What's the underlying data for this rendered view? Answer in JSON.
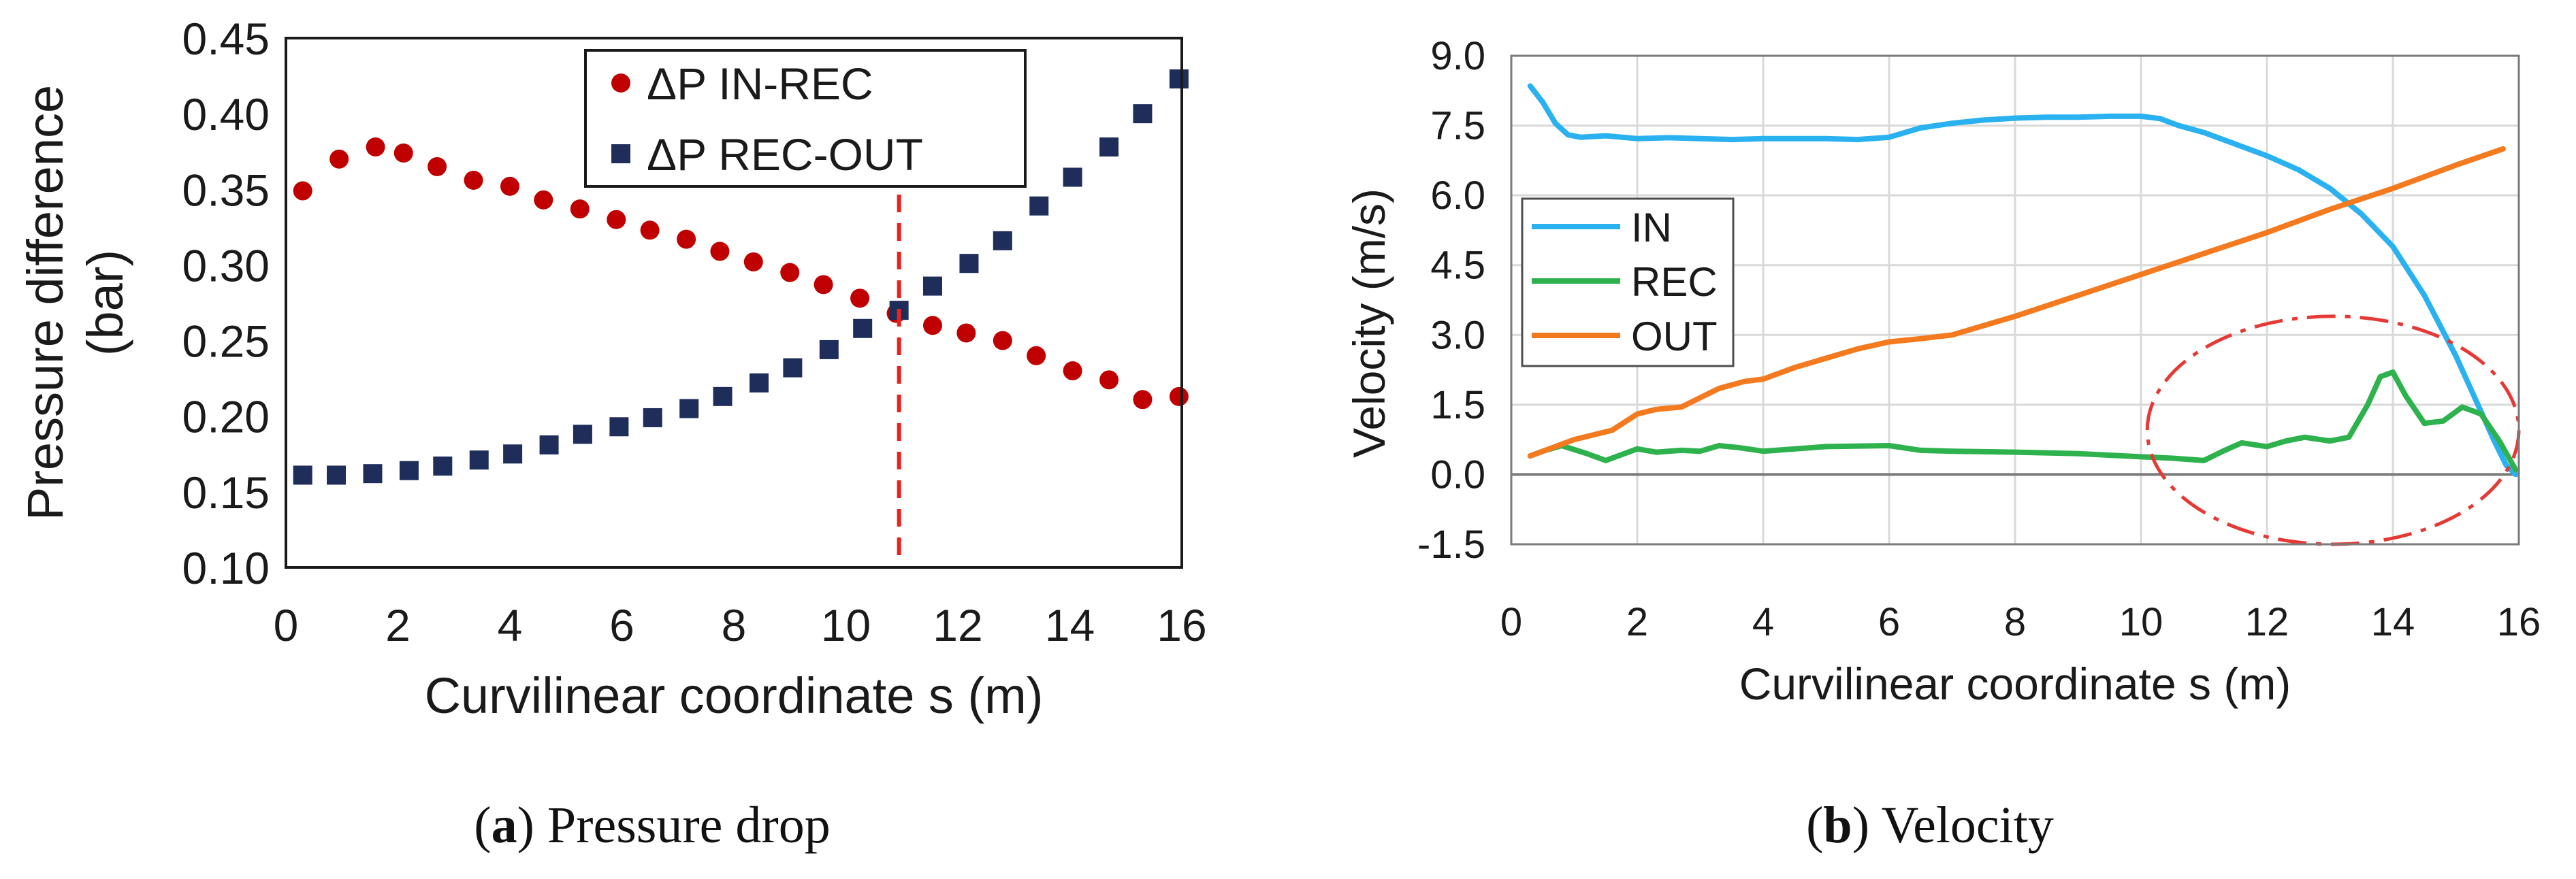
{
  "chart_data": [
    {
      "type": "scatter",
      "xlabel": "Curvilinear coordinate s (m)",
      "ylabel_line1": "Pressure difference",
      "ylabel_line2": "(bar)",
      "xlim": [
        0,
        16
      ],
      "ylim": [
        0.1,
        0.45
      ],
      "xticks": [
        "0",
        "2",
        "4",
        "6",
        "8",
        "10",
        "12",
        "14",
        "16"
      ],
      "yticks": [
        "0.10",
        "0.15",
        "0.20",
        "0.25",
        "0.30",
        "0.35",
        "0.40",
        "0.45"
      ],
      "grid": false,
      "legend_position": "top-right",
      "vline_x": 10.95,
      "colors": {
        "in_rec": "#c00000",
        "rec_out": "#1f2d5a",
        "vline": "#e8231e"
      },
      "series": [
        {
          "name": "ΔP IN-REC",
          "marker": "circle",
          "x": [
            0.3,
            0.95,
            1.6,
            2.1,
            2.7,
            3.35,
            4.0,
            4.6,
            5.25,
            5.9,
            6.5,
            7.15,
            7.75,
            8.35,
            9.0,
            9.6,
            10.25,
            10.9,
            11.55,
            12.15,
            12.8,
            13.4,
            14.05,
            14.7,
            15.3,
            15.95
          ],
          "y": [
            0.349,
            0.37,
            0.378,
            0.374,
            0.365,
            0.356,
            0.352,
            0.343,
            0.337,
            0.33,
            0.323,
            0.317,
            0.309,
            0.302,
            0.295,
            0.287,
            0.278,
            0.268,
            0.26,
            0.255,
            0.25,
            0.24,
            0.23,
            0.224,
            0.211,
            0.213
          ]
        },
        {
          "name": "ΔP REC-OUT",
          "marker": "square",
          "x": [
            0.3,
            0.9,
            1.55,
            2.2,
            2.8,
            3.45,
            4.05,
            4.7,
            5.3,
            5.95,
            6.55,
            7.2,
            7.8,
            8.45,
            9.05,
            9.7,
            10.3,
            10.95,
            11.55,
            12.2,
            12.8,
            13.45,
            14.05,
            14.7,
            15.3,
            15.95
          ],
          "y": [
            0.161,
            0.161,
            0.162,
            0.164,
            0.167,
            0.171,
            0.175,
            0.181,
            0.188,
            0.193,
            0.199,
            0.205,
            0.213,
            0.222,
            0.232,
            0.244,
            0.258,
            0.27,
            0.286,
            0.301,
            0.316,
            0.339,
            0.358,
            0.378,
            0.4,
            0.423
          ]
        }
      ]
    },
    {
      "type": "line",
      "xlabel": "Curvilinear coordinate s (m)",
      "ylabel": "Velocity (m/s)",
      "xlim": [
        0,
        16
      ],
      "ylim": [
        -1.5,
        9.0
      ],
      "xticks": [
        "0",
        "2",
        "4",
        "6",
        "8",
        "10",
        "12",
        "14",
        "16"
      ],
      "yticks": [
        "-1.5",
        "0.0",
        "1.5",
        "3.0",
        "4.5",
        "6.0",
        "7.5",
        "9.0"
      ],
      "grid": true,
      "legend_position": "middle-left",
      "annotation": "dash-dot ellipse highlighting REC oscillations between s≈10 and s≈16",
      "colors": {
        "in": "#29b1f0",
        "rec": "#2eb24e",
        "out": "#f47a1f",
        "ellipse": "#e53935",
        "grid": "#d9d9d9"
      },
      "series": [
        {
          "name": "IN",
          "x": [
            0.3,
            0.5,
            0.7,
            0.9,
            1.1,
            1.5,
            2.0,
            2.5,
            3.0,
            3.5,
            4.0,
            4.5,
            5.0,
            5.5,
            6.0,
            6.5,
            7.0,
            7.5,
            8.0,
            8.5,
            9.0,
            9.5,
            10.0,
            10.3,
            10.6,
            11.0,
            11.5,
            12.0,
            12.5,
            13.0,
            13.5,
            14.0,
            14.5,
            15.0,
            15.3,
            15.6,
            15.8,
            15.95
          ],
          "y": [
            8.35,
            8.0,
            7.55,
            7.3,
            7.25,
            7.28,
            7.22,
            7.24,
            7.22,
            7.2,
            7.22,
            7.22,
            7.22,
            7.2,
            7.25,
            7.45,
            7.55,
            7.62,
            7.66,
            7.68,
            7.68,
            7.7,
            7.7,
            7.65,
            7.5,
            7.35,
            7.1,
            6.85,
            6.55,
            6.15,
            5.6,
            4.9,
            3.85,
            2.55,
            1.65,
            0.75,
            0.2,
            0.0
          ]
        },
        {
          "name": "REC",
          "x": [
            0.3,
            0.5,
            0.8,
            1.2,
            1.5,
            2.0,
            2.3,
            2.7,
            3.0,
            3.3,
            3.6,
            4.0,
            5.0,
            6.0,
            6.5,
            7.0,
            8.0,
            9.0,
            10.0,
            10.5,
            11.0,
            11.3,
            11.6,
            12.0,
            12.3,
            12.6,
            13.0,
            13.3,
            13.6,
            13.8,
            14.0,
            14.2,
            14.5,
            14.8,
            15.1,
            15.4,
            15.7,
            15.95
          ],
          "y": [
            0.4,
            0.5,
            0.62,
            0.45,
            0.3,
            0.55,
            0.48,
            0.52,
            0.5,
            0.62,
            0.58,
            0.5,
            0.6,
            0.62,
            0.52,
            0.5,
            0.48,
            0.45,
            0.38,
            0.35,
            0.3,
            0.5,
            0.68,
            0.6,
            0.72,
            0.8,
            0.72,
            0.8,
            1.5,
            2.1,
            2.2,
            1.7,
            1.1,
            1.15,
            1.45,
            1.3,
            0.7,
            0.1
          ]
        },
        {
          "name": "OUT",
          "x": [
            0.3,
            0.7,
            1.0,
            1.3,
            1.6,
            2.0,
            2.3,
            2.7,
            3.0,
            3.3,
            3.7,
            4.0,
            4.5,
            5.0,
            5.5,
            6.0,
            6.5,
            7.0,
            8.0,
            9.0,
            10.0,
            11.0,
            12.0,
            13.0,
            14.0,
            15.0,
            15.75
          ],
          "y": [
            0.4,
            0.6,
            0.75,
            0.85,
            0.95,
            1.3,
            1.4,
            1.45,
            1.65,
            1.85,
            2.0,
            2.05,
            2.3,
            2.5,
            2.7,
            2.85,
            2.92,
            3.0,
            3.4,
            3.85,
            4.3,
            4.75,
            5.2,
            5.7,
            6.15,
            6.65,
            7.0
          ]
        }
      ]
    }
  ],
  "captions": {
    "a_letter": "a",
    "a_text": " Pressure drop",
    "b_letter": "b",
    "b_text": " Velocity"
  }
}
